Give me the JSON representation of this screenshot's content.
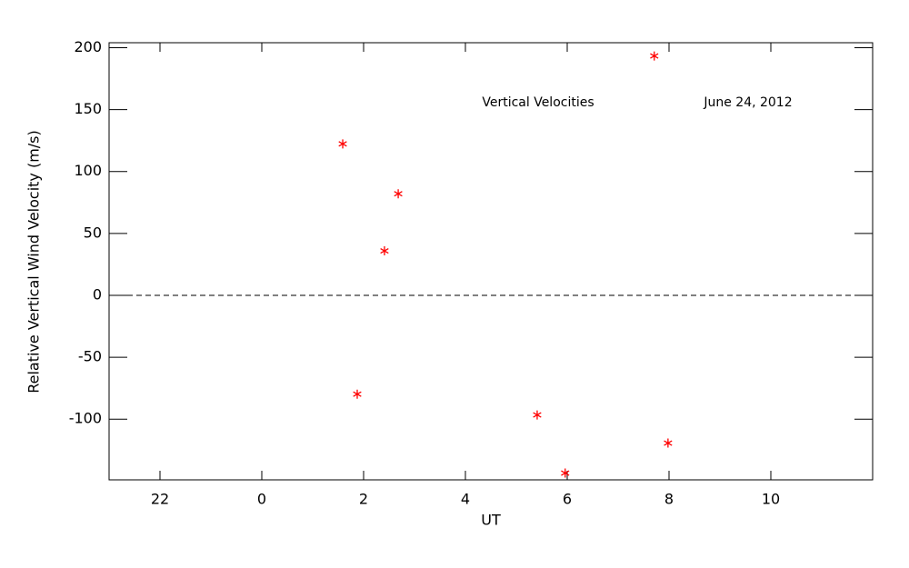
{
  "chart_data": {
    "type": "scatter",
    "annotations": [
      "Vertical Velocities",
      "June 24, 2012"
    ],
    "x_label": "UT",
    "y_label": "Relative Vertical Wind Velocity (m/s)",
    "series": [
      {
        "name": "Vertical Velocities",
        "color": "#ff0000",
        "x": [
          1.59,
          1.875,
          2.41,
          2.68,
          5.41,
          5.96,
          7.71,
          7.98
        ],
        "values": [
          122.3,
          -79.8,
          35.9,
          82.0,
          -96.6,
          -143.5,
          193.3,
          -119.3
        ]
      }
    ],
    "xlim": [
      -3,
      12
    ],
    "xticks": [
      {
        "value": -2,
        "label": "22"
      },
      0,
      2,
      4,
      6,
      8,
      10
    ],
    "ylim": [
      -149,
      204
    ],
    "yticks": [
      -100,
      -50,
      0,
      50,
      100,
      150,
      200
    ],
    "reference_line": {
      "y": 0,
      "style": "dashed"
    },
    "grid": false
  }
}
